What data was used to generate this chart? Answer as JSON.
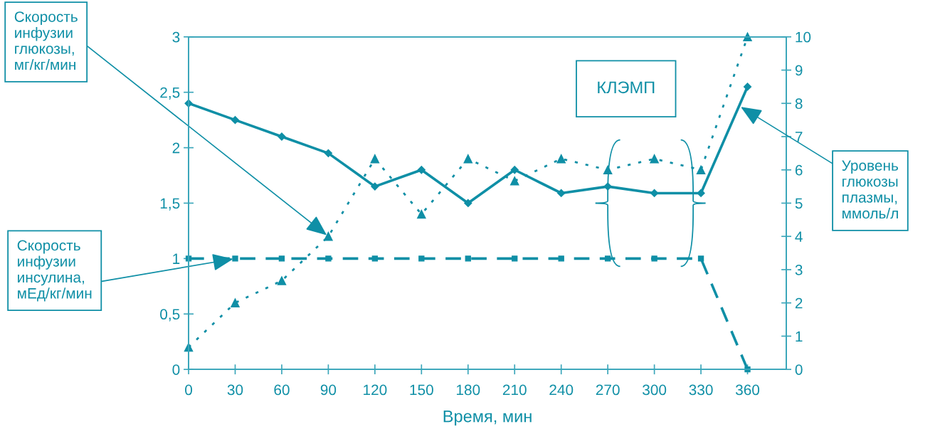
{
  "chart_data": {
    "type": "line",
    "xlabel": "Время, мин",
    "x": [
      0,
      30,
      60,
      90,
      120,
      150,
      180,
      210,
      240,
      270,
      300,
      330,
      360
    ],
    "xlim": [
      0,
      385
    ],
    "xticks": [
      0,
      30,
      60,
      90,
      120,
      150,
      180,
      210,
      240,
      270,
      300,
      330,
      360
    ],
    "ylim": [
      0,
      3
    ],
    "yticks": [
      0,
      {
        "value": 0.5,
        "label": "0,5"
      },
      1,
      {
        "value": 1.5,
        "label": "1,5"
      },
      2,
      {
        "value": 2.5,
        "label": "2,5"
      },
      3
    ],
    "y2lim": [
      0,
      10
    ],
    "y2ticks": [
      0,
      1,
      2,
      3,
      4,
      5,
      6,
      7,
      8,
      9,
      10
    ],
    "grid": false,
    "legend": false,
    "series": [
      {
        "name": "Скорость инфузии глюкозы, мг/кг/мин",
        "color": "#0f8fa6",
        "marker": "triangle",
        "line_style": "dotted",
        "values": [
          0.2,
          0.6,
          0.8,
          1.2,
          1.9,
          1.4,
          1.9,
          1.7,
          1.9,
          1.8,
          1.9,
          1.8,
          3.0
        ]
      },
      {
        "name": "Скорость инфузии инсулина, мЕд/кг/мин",
        "color": "#0f8fa6",
        "marker": "square",
        "line_style": "dashed",
        "values": [
          1,
          1,
          1,
          1,
          1,
          1,
          1,
          1,
          1,
          1,
          1,
          1,
          0
        ]
      },
      {
        "name": "Уровень глюкозы плазмы, ммоль/л",
        "color": "#0f8fa6",
        "marker": "diamond",
        "line_style": "solid",
        "axis": "y2",
        "values": [
          8.0,
          7.5,
          7.0,
          6.5,
          5.5,
          6.0,
          5.0,
          6.0,
          5.3,
          5.5,
          5.3,
          5.3,
          8.5
        ]
      }
    ],
    "annotations": [
      "КЛЭМП"
    ]
  }
}
